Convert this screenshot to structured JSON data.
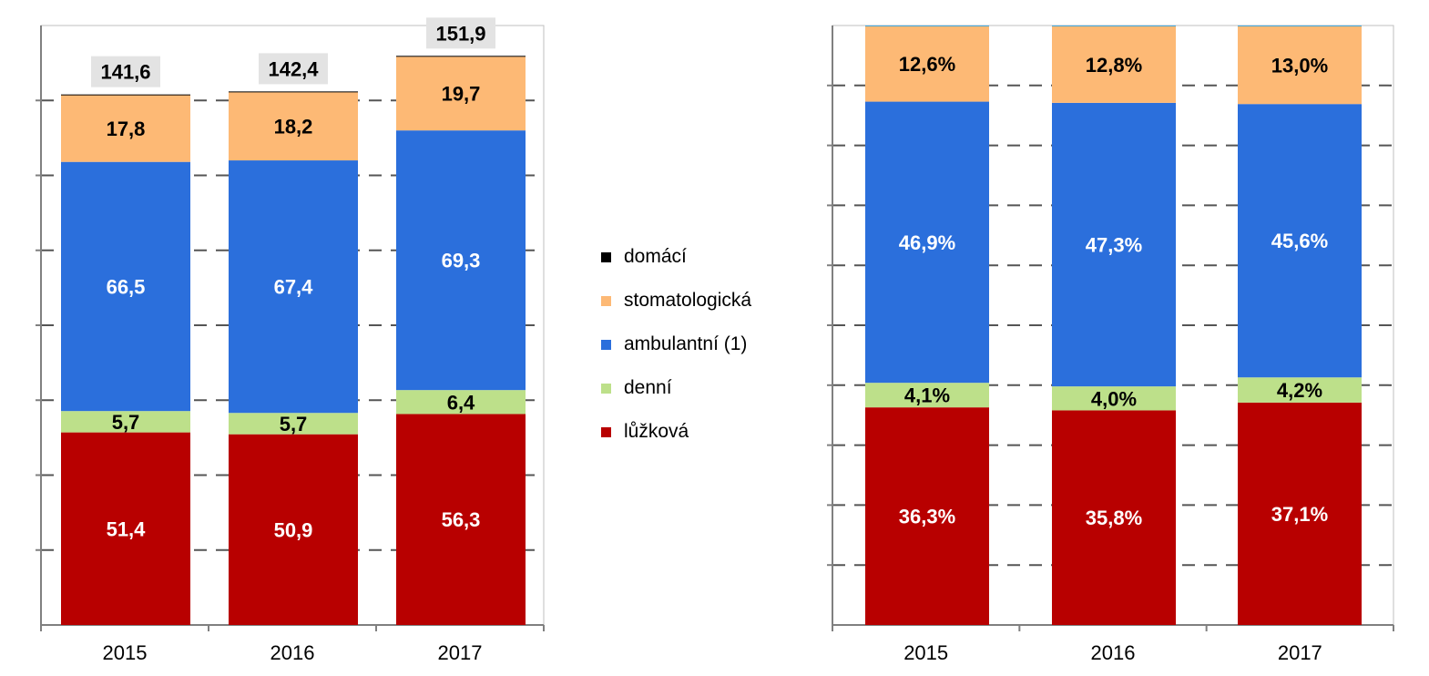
{
  "chart_data": [
    {
      "type": "bar",
      "stacked": true,
      "categories": [
        "2015",
        "2016",
        "2017"
      ],
      "series": [
        {
          "name": "lůžková",
          "values": [
            51.4,
            50.9,
            56.3
          ],
          "labels": [
            "51,4",
            "50,9",
            "56,3"
          ],
          "color": "#B80000",
          "label_color": "#ffffff"
        },
        {
          "name": "denní",
          "values": [
            5.7,
            5.7,
            6.4
          ],
          "labels": [
            "5,7",
            "5,7",
            "6,4"
          ],
          "color": "#BDE08A",
          "label_color": "#000000"
        },
        {
          "name": "ambulantní (1)",
          "values": [
            66.5,
            67.4,
            69.3
          ],
          "labels": [
            "66,5",
            "67,4",
            "69,3"
          ],
          "color": "#2B6FDC",
          "label_color": "#ffffff"
        },
        {
          "name": "stomatologická",
          "values": [
            17.8,
            18.2,
            19.7
          ],
          "labels": [
            "17,8",
            "18,2",
            "19,7"
          ],
          "color": "#FDB975",
          "label_color": "#000000"
        },
        {
          "name": "domácí",
          "values": [
            0.2,
            0.2,
            0.2
          ],
          "labels": [
            "",
            "",
            ""
          ],
          "color": "#000000",
          "label_color": "#000000"
        }
      ],
      "totals": [
        141.6,
        142.4,
        151.9
      ],
      "total_labels": [
        "141,6",
        "142,4",
        "151,9"
      ],
      "ylim": [
        0,
        160
      ],
      "grid": true,
      "ytick_labels_shown": false
    },
    {
      "type": "bar",
      "stacked": true,
      "percent": true,
      "categories": [
        "2015",
        "2016",
        "2017"
      ],
      "series": [
        {
          "name": "lůžková",
          "values": [
            36.3,
            35.8,
            37.1
          ],
          "labels": [
            "36,3%",
            "35,8%",
            "37,1%"
          ],
          "color": "#B80000",
          "label_color": "#ffffff"
        },
        {
          "name": "denní",
          "values": [
            4.1,
            4.0,
            4.2
          ],
          "labels": [
            "4,1%",
            "4,0%",
            "4,2%"
          ],
          "color": "#BDE08A",
          "label_color": "#000000"
        },
        {
          "name": "ambulantní (1)",
          "values": [
            46.9,
            47.3,
            45.6
          ],
          "labels": [
            "46,9%",
            "47,3%",
            "45,6%"
          ],
          "color": "#2B6FDC",
          "label_color": "#ffffff"
        },
        {
          "name": "stomatologická",
          "values": [
            12.6,
            12.8,
            13.0
          ],
          "labels": [
            "12,6%",
            "12,8%",
            "13,0%"
          ],
          "color": "#FDB975",
          "label_color": "#000000"
        },
        {
          "name": "domácí",
          "values": [
            0.1,
            0.1,
            0.1
          ],
          "labels": [
            "",
            "",
            ""
          ],
          "color": "#3FA9E0",
          "label_color": "#000000"
        }
      ],
      "ylim": [
        0,
        100
      ],
      "grid": true,
      "ytick_labels_shown": false
    }
  ],
  "legend": {
    "placement": "center",
    "items": [
      {
        "label": "domácí",
        "color": "#000000"
      },
      {
        "label": "stomatologická",
        "color": "#FDB975"
      },
      {
        "label": "ambulantní (1)",
        "color": "#2B6FDC"
      },
      {
        "label": "denní",
        "color": "#BDE08A"
      },
      {
        "label": "lůžková",
        "color": "#B80000"
      }
    ]
  },
  "colors": {
    "grid": "#555555",
    "axis": "#808080",
    "total_box": "#E3E3E3"
  }
}
